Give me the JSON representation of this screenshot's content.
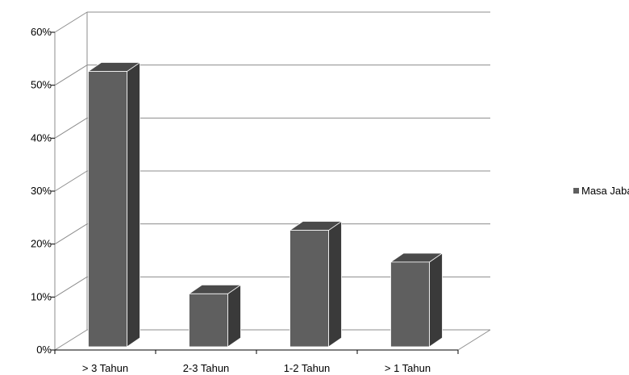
{
  "chart_data": {
    "type": "bar",
    "categories": [
      "> 3 Tahun",
      "2-3 Tahun",
      "1-2 Tahun",
      "> 1 Tahun"
    ],
    "series": [
      {
        "name": "Masa Jabatan",
        "values": [
          52,
          10,
          22,
          16
        ]
      }
    ],
    "y_ticks": [
      "0%",
      "10%",
      "20%",
      "30%",
      "40%",
      "50%",
      "60%"
    ],
    "ylim": [
      0,
      60
    ],
    "y_unit": "%",
    "grid": true,
    "three_d": true,
    "legend_position": "right",
    "colors": {
      "bar_front": "#5f5f5f",
      "bar_side": "#3a3a3a",
      "bar_top": "#4a4a4a",
      "grid": "#8c8c8c"
    }
  }
}
